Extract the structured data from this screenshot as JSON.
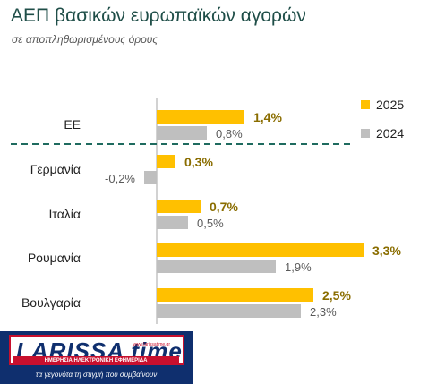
{
  "title": "ΑΕΠ βασικών ευρωπαϊκών αγορών",
  "subtitle": "σε αποπληθωρισμένους όρους",
  "chart_data": {
    "type": "bar",
    "orientation": "horizontal",
    "categories": [
      "ΕΕ",
      "Γερμανία",
      "Ιταλία",
      "Ρουμανία",
      "Βουλγαρία"
    ],
    "series": [
      {
        "name": "2025",
        "values": [
          1.4,
          0.3,
          0.7,
          3.3,
          2.5
        ],
        "labels": [
          "1,4%",
          "0,3%",
          "0,7%",
          "3,3%",
          "2,5%"
        ],
        "color": "#ffc000",
        "label_color": "#8a6d00"
      },
      {
        "name": "2024",
        "values": [
          0.8,
          -0.2,
          0.5,
          1.9,
          2.3
        ],
        "labels": [
          "0,8%",
          "-0,2%",
          "0,5%",
          "1,9%",
          "2,3%"
        ],
        "color": "#bfbfbf",
        "label_color": "#595959"
      }
    ],
    "xlim": [
      -0.2,
      3.3
    ],
    "legend": "top-right",
    "grid": false,
    "separator": "dashed line below ΕΕ",
    "separator_color": "#1f6b5f"
  },
  "logo": {
    "name": "LARISSA time",
    "subline": "ΗΜΕΡΗΣΙΑ ΗΛΕΚΤΡΟΝΙΚΗ ΕΦΗΜΕΡΙΔΑ",
    "url": "www.larissatime.gr",
    "tagline": "τα γεγονότα τη στιγμή που συμβαίνουν"
  }
}
